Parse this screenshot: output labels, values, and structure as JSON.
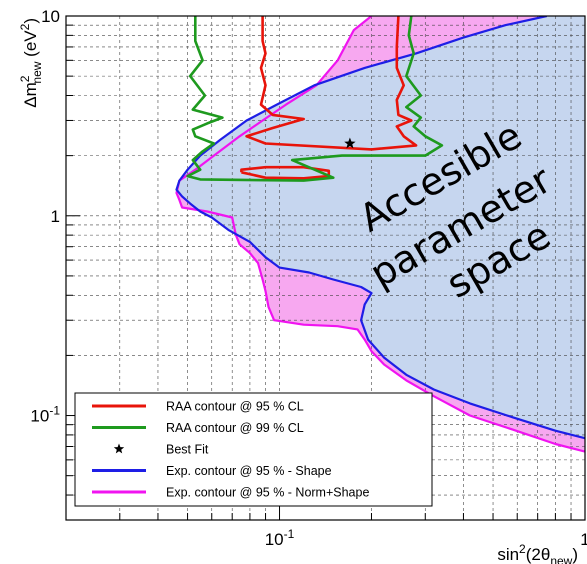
{
  "chart_data": {
    "type": "line",
    "axes": {
      "x": {
        "label_base": "sin",
        "label_sup": "2",
        "label_mid": "(2θ",
        "label_sub": "new",
        "label_end": ")",
        "scale": "log",
        "range": [
          0.02,
          1
        ],
        "grid": true
      },
      "y": {
        "label_base": "Δm",
        "label_sup": "2",
        "label_sub": "new",
        "label_end": " (eV",
        "label_end_sup": "2",
        "label_close": ")",
        "scale": "log",
        "range": [
          0.03,
          10
        ],
        "grid": true
      }
    },
    "x_ticks": [
      {
        "value": 0.1,
        "base": "10",
        "exp": "-1"
      },
      {
        "value": 1,
        "base": "1",
        "exp": ""
      }
    ],
    "y_ticks": [
      {
        "value": 0.1,
        "base": "10",
        "exp": "-1"
      },
      {
        "value": 1,
        "base": "1",
        "exp": ""
      },
      {
        "value": 10,
        "base": "10",
        "exp": ""
      }
    ],
    "annotation": {
      "lines": [
        "Accesible",
        "parameter",
        "space"
      ],
      "rotation_deg": -30
    },
    "legend": {
      "placement": "bottom-left",
      "entries": [
        {
          "label": "RAA contour @ 95 % CL",
          "color": "#e8140a",
          "marker": "line"
        },
        {
          "label": "RAA contour @ 99 % CL",
          "color": "#1e9a1e",
          "marker": "line"
        },
        {
          "label": "Best Fit",
          "color": "#000000",
          "marker": "star"
        },
        {
          "label": "Exp. contour @ 95 % - Shape",
          "color": "#1e1ee6",
          "marker": "line"
        },
        {
          "label": "Exp. contour @ 95 % - Norm+Shape",
          "color": "#f014f0",
          "marker": "line"
        }
      ]
    },
    "regions": [
      {
        "series": "Exp. contour @ 95 % - Norm+Shape",
        "fill": "#f7a8f0"
      },
      {
        "series": "Exp. contour @ 95 % - Shape",
        "fill": "#c6d6ef"
      }
    ],
    "series": [
      {
        "name": "Exp. contour @ 95 % - Norm+Shape",
        "color": "#f014f0",
        "points": [
          [
            0.2,
            10
          ],
          [
            0.175,
            8.5
          ],
          [
            0.155,
            6.0
          ],
          [
            0.132,
            4.5
          ],
          [
            0.105,
            3.6
          ],
          [
            0.088,
            3.0
          ],
          [
            0.074,
            2.5
          ],
          [
            0.061,
            2.0
          ],
          [
            0.053,
            1.7
          ],
          [
            0.047,
            1.5
          ],
          [
            0.046,
            1.3
          ],
          [
            0.047,
            1.2
          ],
          [
            0.048,
            1.1
          ],
          [
            0.058,
            1.05
          ],
          [
            0.07,
            0.98
          ],
          [
            0.072,
            0.8
          ],
          [
            0.074,
            0.72
          ],
          [
            0.08,
            0.65
          ],
          [
            0.085,
            0.58
          ],
          [
            0.088,
            0.48
          ],
          [
            0.09,
            0.42
          ],
          [
            0.092,
            0.35
          ],
          [
            0.096,
            0.3
          ],
          [
            0.12,
            0.285
          ],
          [
            0.155,
            0.28
          ],
          [
            0.18,
            0.27
          ],
          [
            0.19,
            0.24
          ],
          [
            0.2,
            0.21
          ],
          [
            0.22,
            0.18
          ],
          [
            0.26,
            0.15
          ],
          [
            0.32,
            0.125
          ],
          [
            0.42,
            0.1
          ],
          [
            0.58,
            0.085
          ],
          [
            0.8,
            0.072
          ],
          [
            1.0,
            0.066
          ]
        ]
      },
      {
        "name": "Exp. contour @ 95 % - Shape",
        "color": "#1e1ee6",
        "points": [
          [
            0.75,
            10
          ],
          [
            0.55,
            9.0
          ],
          [
            0.4,
            7.8
          ],
          [
            0.28,
            6.5
          ],
          [
            0.19,
            5.5
          ],
          [
            0.13,
            4.5
          ],
          [
            0.098,
            3.6
          ],
          [
            0.078,
            3.0
          ],
          [
            0.064,
            2.4
          ],
          [
            0.055,
            2.0
          ],
          [
            0.05,
            1.7
          ],
          [
            0.047,
            1.5
          ],
          [
            0.046,
            1.35
          ],
          [
            0.048,
            1.25
          ],
          [
            0.051,
            1.15
          ],
          [
            0.055,
            1.05
          ],
          [
            0.06,
            0.98
          ],
          [
            0.068,
            0.85
          ],
          [
            0.08,
            0.74
          ],
          [
            0.09,
            0.62
          ],
          [
            0.1,
            0.55
          ],
          [
            0.125,
            0.52
          ],
          [
            0.15,
            0.48
          ],
          [
            0.185,
            0.44
          ],
          [
            0.2,
            0.41
          ],
          [
            0.19,
            0.36
          ],
          [
            0.185,
            0.3
          ],
          [
            0.195,
            0.24
          ],
          [
            0.22,
            0.195
          ],
          [
            0.26,
            0.16
          ],
          [
            0.32,
            0.135
          ],
          [
            0.42,
            0.115
          ],
          [
            0.58,
            0.098
          ],
          [
            0.8,
            0.084
          ],
          [
            1.0,
            0.077
          ]
        ]
      },
      {
        "name": "RAA contour @ 95 % CL",
        "color": "#e8140a",
        "closed": false,
        "segments": [
          [
            [
              0.088,
              10
            ],
            [
              0.088,
              7.5
            ],
            [
              0.09,
              6.5
            ],
            [
              0.087,
              5.5
            ],
            [
              0.09,
              4.5
            ],
            [
              0.087,
              3.6
            ],
            [
              0.095,
              3.2
            ],
            [
              0.12,
              3.05
            ],
            [
              0.095,
              2.75
            ],
            [
              0.078,
              2.5
            ],
            [
              0.09,
              2.3
            ],
            [
              0.2,
              2.15
            ],
            [
              0.28,
              2.25
            ],
            [
              0.255,
              2.5
            ],
            [
              0.242,
              2.8
            ],
            [
              0.27,
              3.0
            ],
            [
              0.245,
              3.2
            ],
            [
              0.242,
              3.8
            ],
            [
              0.255,
              4.5
            ],
            [
              0.242,
              5.5
            ],
            [
              0.242,
              7.0
            ],
            [
              0.245,
              10
            ]
          ],
          [
            [
              0.075,
              1.65
            ],
            [
              0.09,
              1.55
            ],
            [
              0.12,
              1.54
            ],
            [
              0.145,
              1.58
            ],
            [
              0.145,
              1.68
            ],
            [
              0.12,
              1.75
            ],
            [
              0.09,
              1.75
            ],
            [
              0.075,
              1.7
            ],
            [
              0.075,
              1.65
            ]
          ]
        ]
      },
      {
        "name": "RAA contour @ 99 % CL",
        "color": "#1e9a1e",
        "closed": false,
        "segments": [
          [
            [
              0.053,
              10
            ],
            [
              0.053,
              7.5
            ],
            [
              0.056,
              6.0
            ],
            [
              0.051,
              5.0
            ],
            [
              0.057,
              4.0
            ],
            [
              0.052,
              3.4
            ],
            [
              0.065,
              3.1
            ],
            [
              0.058,
              2.9
            ],
            [
              0.052,
              2.7
            ],
            [
              0.053,
              2.5
            ],
            [
              0.061,
              2.3
            ],
            [
              0.056,
              2.1
            ],
            [
              0.052,
              1.9
            ],
            [
              0.055,
              1.7
            ],
            [
              0.05,
              1.58
            ],
            [
              0.055,
              1.52
            ],
            [
              0.12,
              1.5
            ],
            [
              0.15,
              1.55
            ],
            [
              0.11,
              1.9
            ],
            [
              0.16,
              2.0
            ],
            [
              0.3,
              2.0
            ],
            [
              0.34,
              2.25
            ],
            [
              0.3,
              2.5
            ],
            [
              0.275,
              2.8
            ],
            [
              0.29,
              3.1
            ],
            [
              0.26,
              3.5
            ],
            [
              0.29,
              4.0
            ],
            [
              0.26,
              5.0
            ],
            [
              0.275,
              6.5
            ],
            [
              0.265,
              8.0
            ],
            [
              0.27,
              10
            ]
          ]
        ]
      }
    ],
    "best_fit": {
      "x": 0.17,
      "y": 2.3,
      "marker": "star",
      "color": "#000000"
    }
  }
}
